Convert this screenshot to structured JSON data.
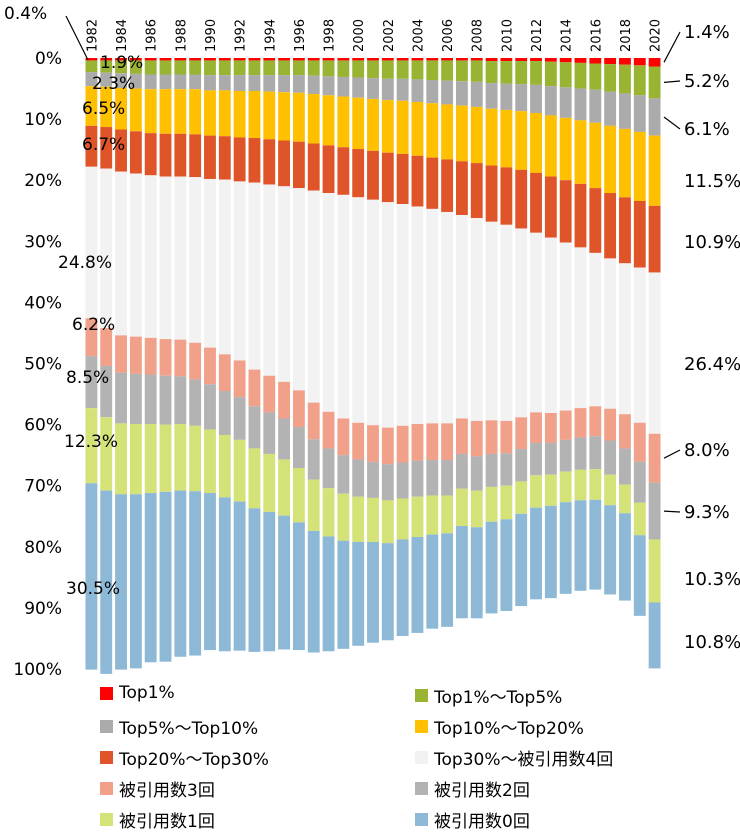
{
  "chart_data": {
    "type": "bar",
    "stacked": true,
    "orientation": "vertical",
    "title": "",
    "xlabel": "",
    "ylabel": "",
    "ylim": [
      0,
      100
    ],
    "y_ticks": [
      "0%",
      "10%",
      "20%",
      "30%",
      "40%",
      "50%",
      "60%",
      "70%",
      "80%",
      "90%",
      "100%"
    ],
    "x_tick_labels": [
      "1982",
      "1984",
      "1986",
      "1988",
      "1990",
      "1992",
      "1994",
      "1996",
      "1998",
      "2000",
      "2002",
      "2004",
      "2006",
      "2008",
      "2010",
      "2012",
      "2014",
      "2016",
      "2018",
      "2020"
    ],
    "categories": [
      1982,
      1983,
      1984,
      1985,
      1986,
      1987,
      1988,
      1989,
      1990,
      1991,
      1992,
      1993,
      1994,
      1995,
      1996,
      1997,
      1998,
      1999,
      2000,
      2001,
      2002,
      2003,
      2004,
      2005,
      2006,
      2007,
      2008,
      2009,
      2010,
      2011,
      2012,
      2013,
      2014,
      2015,
      2016,
      2017,
      2018,
      2019,
      2020
    ],
    "series": [
      {
        "name": "Top1%",
        "color": "#ff0000",
        "values": [
          0.4,
          0.4,
          0.4,
          0.4,
          0.4,
          0.4,
          0.4,
          0.4,
          0.4,
          0.4,
          0.4,
          0.4,
          0.4,
          0.4,
          0.4,
          0.4,
          0.4,
          0.4,
          0.4,
          0.4,
          0.4,
          0.4,
          0.4,
          0.4,
          0.4,
          0.4,
          0.4,
          0.5,
          0.5,
          0.5,
          0.5,
          0.6,
          0.7,
          0.8,
          0.9,
          1.0,
          1.1,
          1.2,
          1.4
        ]
      },
      {
        "name": "Top1%～Top5%",
        "color": "#99b433",
        "values": [
          1.9,
          2.0,
          2.1,
          2.2,
          2.3,
          2.3,
          2.3,
          2.3,
          2.4,
          2.4,
          2.4,
          2.4,
          2.4,
          2.4,
          2.4,
          2.5,
          2.6,
          2.7,
          2.8,
          2.9,
          3.0,
          3.0,
          3.1,
          3.2,
          3.3,
          3.4,
          3.5,
          3.6,
          3.7,
          3.8,
          3.9,
          4.0,
          4.1,
          4.2,
          4.3,
          4.5,
          4.7,
          4.9,
          5.2
        ]
      },
      {
        "name": "Top5%～Top10%",
        "color": "#ababab",
        "values": [
          2.3,
          2.3,
          2.4,
          2.4,
          2.4,
          2.4,
          2.4,
          2.4,
          2.5,
          2.5,
          2.6,
          2.6,
          2.7,
          2.8,
          2.9,
          3.0,
          3.1,
          3.2,
          3.3,
          3.4,
          3.5,
          3.6,
          3.7,
          3.8,
          3.9,
          4.0,
          4.1,
          4.2,
          4.3,
          4.4,
          4.6,
          4.8,
          5.0,
          5.2,
          5.4,
          5.6,
          5.8,
          6.0,
          6.1
        ]
      },
      {
        "name": "Top10%～Top20%",
        "color": "#ffc000",
        "values": [
          6.5,
          6.6,
          6.8,
          7.0,
          7.2,
          7.3,
          7.3,
          7.4,
          7.4,
          7.5,
          7.6,
          7.7,
          7.8,
          7.9,
          8.0,
          8.1,
          8.2,
          8.3,
          8.4,
          8.5,
          8.6,
          8.7,
          8.8,
          8.9,
          9.0,
          9.1,
          9.2,
          9.3,
          9.4,
          9.6,
          9.8,
          10.0,
          10.2,
          10.4,
          10.7,
          11.0,
          11.2,
          11.3,
          11.5
        ]
      },
      {
        "name": "Top20%～Top30%",
        "color": "#e0542a",
        "values": [
          6.7,
          6.8,
          6.9,
          6.9,
          6.9,
          7.0,
          7.0,
          7.0,
          7.1,
          7.1,
          7.2,
          7.3,
          7.4,
          7.5,
          7.6,
          7.7,
          7.8,
          7.8,
          7.9,
          8.0,
          8.1,
          8.2,
          8.3,
          8.4,
          8.6,
          8.8,
          9.0,
          9.2,
          9.4,
          9.6,
          9.8,
          10.0,
          10.2,
          10.4,
          10.6,
          10.7,
          10.8,
          10.9,
          10.9
        ]
      },
      {
        "name": "Top30%～被引用数4回",
        "color": "#f2f2f2",
        "values": [
          24.8,
          26.1,
          26.8,
          26.7,
          26.6,
          26.6,
          26.7,
          27.1,
          27.6,
          28.6,
          29.3,
          30.6,
          31.3,
          32.0,
          33.1,
          34.7,
          35.8,
          36.6,
          36.9,
          36.9,
          36.9,
          36.3,
          35.6,
          35.1,
          34.6,
          33.3,
          33.2,
          32.5,
          32.1,
          30.9,
          29.4,
          28.7,
          27.5,
          26.3,
          25.1,
          24.6,
          24.7,
          25.4,
          26.4
        ]
      },
      {
        "name": "被引用数3回",
        "color": "#f1a08a",
        "values": [
          6.2,
          6.2,
          6.1,
          6.1,
          6.0,
          6.0,
          6.0,
          6.0,
          6.0,
          6.0,
          6.0,
          6.0,
          6.0,
          6.0,
          6.0,
          6.0,
          6.0,
          6.0,
          6.0,
          6.0,
          6.0,
          6.0,
          6.0,
          6.0,
          6.0,
          5.8,
          5.8,
          5.5,
          5.3,
          5.2,
          5.0,
          4.9,
          4.8,
          4.8,
          4.9,
          5.2,
          5.6,
          6.4,
          8.0
        ]
      },
      {
        "name": "被引用数2回",
        "color": "#b3b3b3",
        "values": [
          8.5,
          8.4,
          8.3,
          8.2,
          8.1,
          8.0,
          7.8,
          7.6,
          7.4,
          7.2,
          7.0,
          6.9,
          6.8,
          6.7,
          6.7,
          6.6,
          6.5,
          6.3,
          6.1,
          5.9,
          5.9,
          5.9,
          5.9,
          5.8,
          5.8,
          5.7,
          5.6,
          5.4,
          5.3,
          5.3,
          5.3,
          5.2,
          5.2,
          5.3,
          5.4,
          5.6,
          5.9,
          6.7,
          9.3
        ]
      },
      {
        "name": "被引用数1回",
        "color": "#d5e277",
        "values": [
          12.3,
          12.0,
          11.6,
          11.5,
          11.3,
          11.0,
          10.9,
          10.7,
          10.4,
          10.2,
          10.1,
          9.8,
          9.5,
          9.2,
          8.9,
          8.4,
          7.9,
          7.7,
          7.4,
          7.2,
          7.0,
          6.7,
          6.6,
          6.4,
          6.2,
          6.1,
          6.0,
          5.7,
          5.5,
          5.3,
          5.3,
          5.1,
          5.0,
          5.0,
          5.0,
          5.0,
          4.7,
          5.3,
          10.3
        ]
      },
      {
        "name": "被引用数0回",
        "color": "#8db9d6",
        "values": [
          30.5,
          30.0,
          28.7,
          28.5,
          27.7,
          27.8,
          27.2,
          26.9,
          25.7,
          25.2,
          24.4,
          23.5,
          22.8,
          21.9,
          20.9,
          19.9,
          18.8,
          17.7,
          17.0,
          16.5,
          15.9,
          15.8,
          15.7,
          15.4,
          15.3,
          15.1,
          14.9,
          15.0,
          15.0,
          15.1,
          15.0,
          15.1,
          15.0,
          14.8,
          14.7,
          14.6,
          14.3,
          13.2,
          10.8
        ]
      }
    ],
    "annotations_left": [
      {
        "series": "Top1%",
        "text": "0.4%"
      },
      {
        "series": "Top1%～Top5%",
        "text": "1.9%"
      },
      {
        "series": "Top5%～Top10%",
        "text": "2.3%"
      },
      {
        "series": "Top10%～Top20%",
        "text": "6.5%"
      },
      {
        "series": "Top20%～Top30%",
        "text": "6.7%"
      },
      {
        "series": "Top30%～被引用数4回",
        "text": "24.8%"
      },
      {
        "series": "被引用数3回",
        "text": "6.2%"
      },
      {
        "series": "被引用数2回",
        "text": "8.5%"
      },
      {
        "series": "被引用数1回",
        "text": "12.3%"
      },
      {
        "series": "被引用数0回",
        "text": "30.5%"
      }
    ],
    "annotations_right": [
      {
        "series": "Top1%",
        "text": "1.4%"
      },
      {
        "series": "Top1%～Top5%",
        "text": "5.2%"
      },
      {
        "series": "Top5%～Top10%",
        "text": "6.1%"
      },
      {
        "series": "Top10%～Top20%",
        "text": "11.5%"
      },
      {
        "series": "Top20%～Top30%",
        "text": "10.9%"
      },
      {
        "series": "Top30%～被引用数4回",
        "text": "26.4%"
      },
      {
        "series": "被引用数3回",
        "text": "8.0%"
      },
      {
        "series": "被引用数2回",
        "text": "9.3%"
      },
      {
        "series": "被引用数1回",
        "text": "10.3%"
      },
      {
        "series": "被引用数0回",
        "text": "10.8%"
      }
    ],
    "legend": {
      "placement": "bottom",
      "columns": 2,
      "items": [
        "Top1%",
        "Top1%～Top5%",
        "Top5%～Top10%",
        "Top10%～Top20%",
        "Top20%～Top30%",
        "Top30%～被引用数4回",
        "被引用数3回",
        "被引用数2回",
        "被引用数1回",
        "被引用数0回"
      ]
    }
  }
}
